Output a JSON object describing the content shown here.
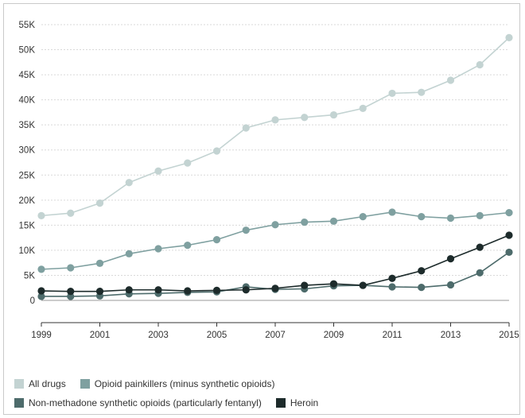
{
  "chart_data": {
    "type": "line",
    "title": "",
    "xlabel": "",
    "ylabel": "",
    "x": [
      1999,
      2000,
      2001,
      2002,
      2003,
      2004,
      2005,
      2006,
      2007,
      2008,
      2009,
      2010,
      2011,
      2012,
      2013,
      2014,
      2015
    ],
    "x_tick_labels": [
      "1999",
      "2001",
      "2003",
      "2005",
      "2007",
      "2009",
      "2011",
      "2013",
      "2015"
    ],
    "y_tick_labels": [
      "0",
      "5K",
      "10K",
      "15K",
      "20K",
      "25K",
      "30K",
      "35K",
      "40K",
      "45K",
      "50K",
      "55K"
    ],
    "ylim": [
      0,
      55000
    ],
    "grid": true,
    "legend_position": "bottom",
    "series": [
      {
        "name": "All drugs",
        "color": "#c3d3d2",
        "values": [
          16900,
          17400,
          19400,
          23500,
          25800,
          27400,
          29800,
          34400,
          36000,
          36500,
          37000,
          38300,
          41300,
          41500,
          43900,
          47000,
          52400
        ]
      },
      {
        "name": "Opioid painkillers (minus synthetic opioids)",
        "color": "#7fa0a0",
        "values": [
          6200,
          6500,
          7400,
          9300,
          10300,
          11000,
          12100,
          14000,
          15100,
          15600,
          15800,
          16700,
          17600,
          16700,
          16400,
          16900,
          17500
        ]
      },
      {
        "name": "Non-methadone synthetic opioids (particularly fentanyl)",
        "color": "#4d6b6b",
        "values": [
          800,
          800,
          900,
          1300,
          1400,
          1600,
          1700,
          2700,
          2200,
          2300,
          2900,
          3000,
          2700,
          2600,
          3100,
          5500,
          9600
        ]
      },
      {
        "name": "Heroin",
        "color": "#1d2b2b",
        "values": [
          1900,
          1800,
          1800,
          2100,
          2100,
          1900,
          2000,
          2100,
          2400,
          3000,
          3300,
          3000,
          4400,
          5900,
          8300,
          10600,
          13000
        ]
      }
    ]
  }
}
